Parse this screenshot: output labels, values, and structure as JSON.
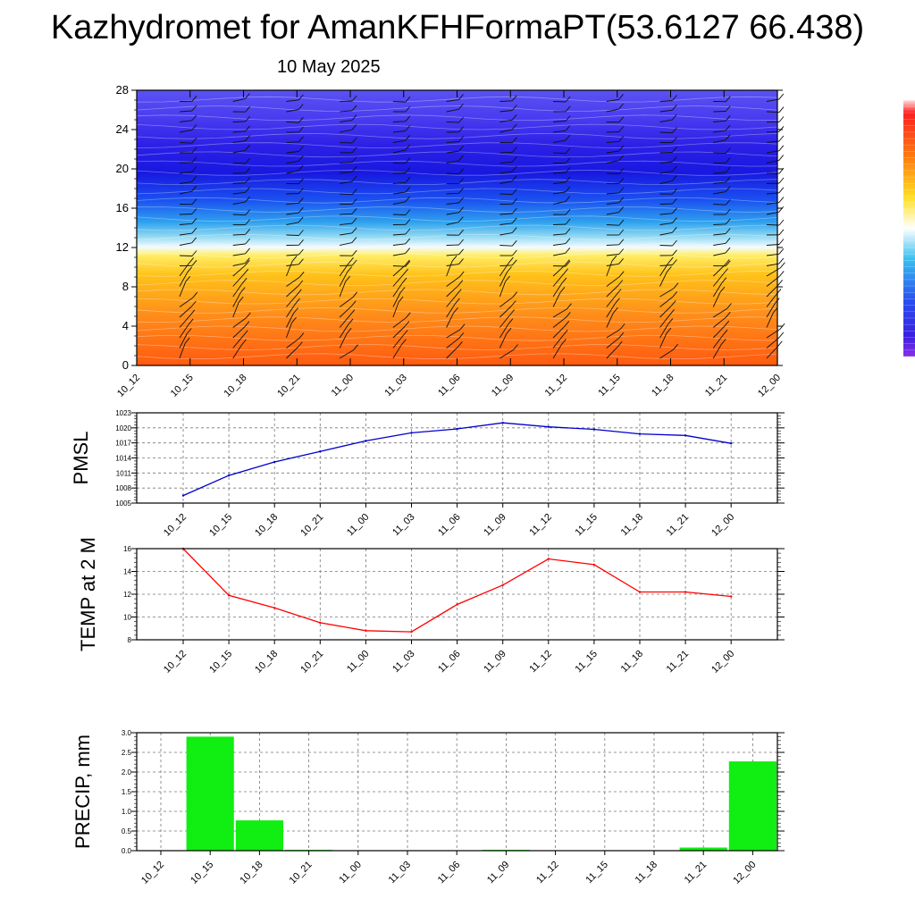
{
  "title": "Kazhydromet for AmanKFHFormaPT(53.6127 66.438)",
  "subtitle": "10 May 2025",
  "time_labels": [
    "10_12",
    "10_15",
    "10_18",
    "10_21",
    "11_00",
    "11_03",
    "11_06",
    "11_09",
    "11_12",
    "11_15",
    "11_18",
    "11_21",
    "12_00"
  ],
  "chart_data": [
    {
      "type": "heatmap",
      "name": "height-time cross section",
      "y_ticks": [
        "0",
        "4",
        "8",
        "12",
        "16",
        "20",
        "24",
        "28"
      ],
      "ylim": [
        0,
        28
      ],
      "x": [
        "10_12",
        "10_15",
        "10_18",
        "10_21",
        "11_00",
        "11_03",
        "11_06",
        "11_09",
        "11_12",
        "11_15",
        "11_18",
        "11_21",
        "12_00"
      ],
      "colorbar": "blue-white-yellow-orange-red",
      "legend": "right"
    },
    {
      "type": "line",
      "ylabel": "PMSL",
      "x": [
        "10_12",
        "10_15",
        "10_18",
        "10_21",
        "11_00",
        "11_03",
        "11_06",
        "11_09",
        "11_12",
        "11_15",
        "11_18",
        "11_21",
        "12_00"
      ],
      "values": [
        1006.5,
        1010.5,
        1013.2,
        1015.3,
        1017.4,
        1019.0,
        1019.8,
        1021.0,
        1020.2,
        1019.7,
        1018.8,
        1018.5,
        1016.9
      ],
      "y_ticks": [
        "1005",
        "1008",
        "1011",
        "1014",
        "1017",
        "1020",
        "1023"
      ],
      "ylim": [
        1005,
        1023
      ],
      "color": "#0000cc",
      "grid": true
    },
    {
      "type": "line",
      "ylabel": "TEMP at 2 M",
      "x": [
        "10_12",
        "10_15",
        "10_18",
        "10_21",
        "11_00",
        "11_03",
        "11_06",
        "11_09",
        "11_12",
        "11_15",
        "11_18",
        "11_21",
        "12_00"
      ],
      "values": [
        16.0,
        11.9,
        10.8,
        9.5,
        8.8,
        8.7,
        11.1,
        12.8,
        15.1,
        14.6,
        12.2,
        12.2,
        11.8
      ],
      "y_ticks": [
        "8",
        "10",
        "12",
        "14",
        "16"
      ],
      "ylim": [
        8,
        16
      ],
      "color": "#ff0000",
      "grid": true
    },
    {
      "type": "bar",
      "ylabel": "PRECIP, mm",
      "categories": [
        "10_12",
        "10_15",
        "10_18",
        "10_21",
        "11_00",
        "11_03",
        "11_06",
        "11_09",
        "11_12",
        "11_15",
        "11_18",
        "11_21",
        "12_00"
      ],
      "values": [
        0,
        2.9,
        0.77,
        0.02,
        0,
        0,
        0,
        0.02,
        0,
        0,
        0,
        0.08,
        2.27
      ],
      "y_ticks": [
        "0.0",
        "0.5",
        "1.0",
        "1.5",
        "2.0",
        "2.5",
        "3.0"
      ],
      "ylim": [
        0,
        3.0
      ],
      "color": "#11ee11",
      "grid": true
    }
  ]
}
